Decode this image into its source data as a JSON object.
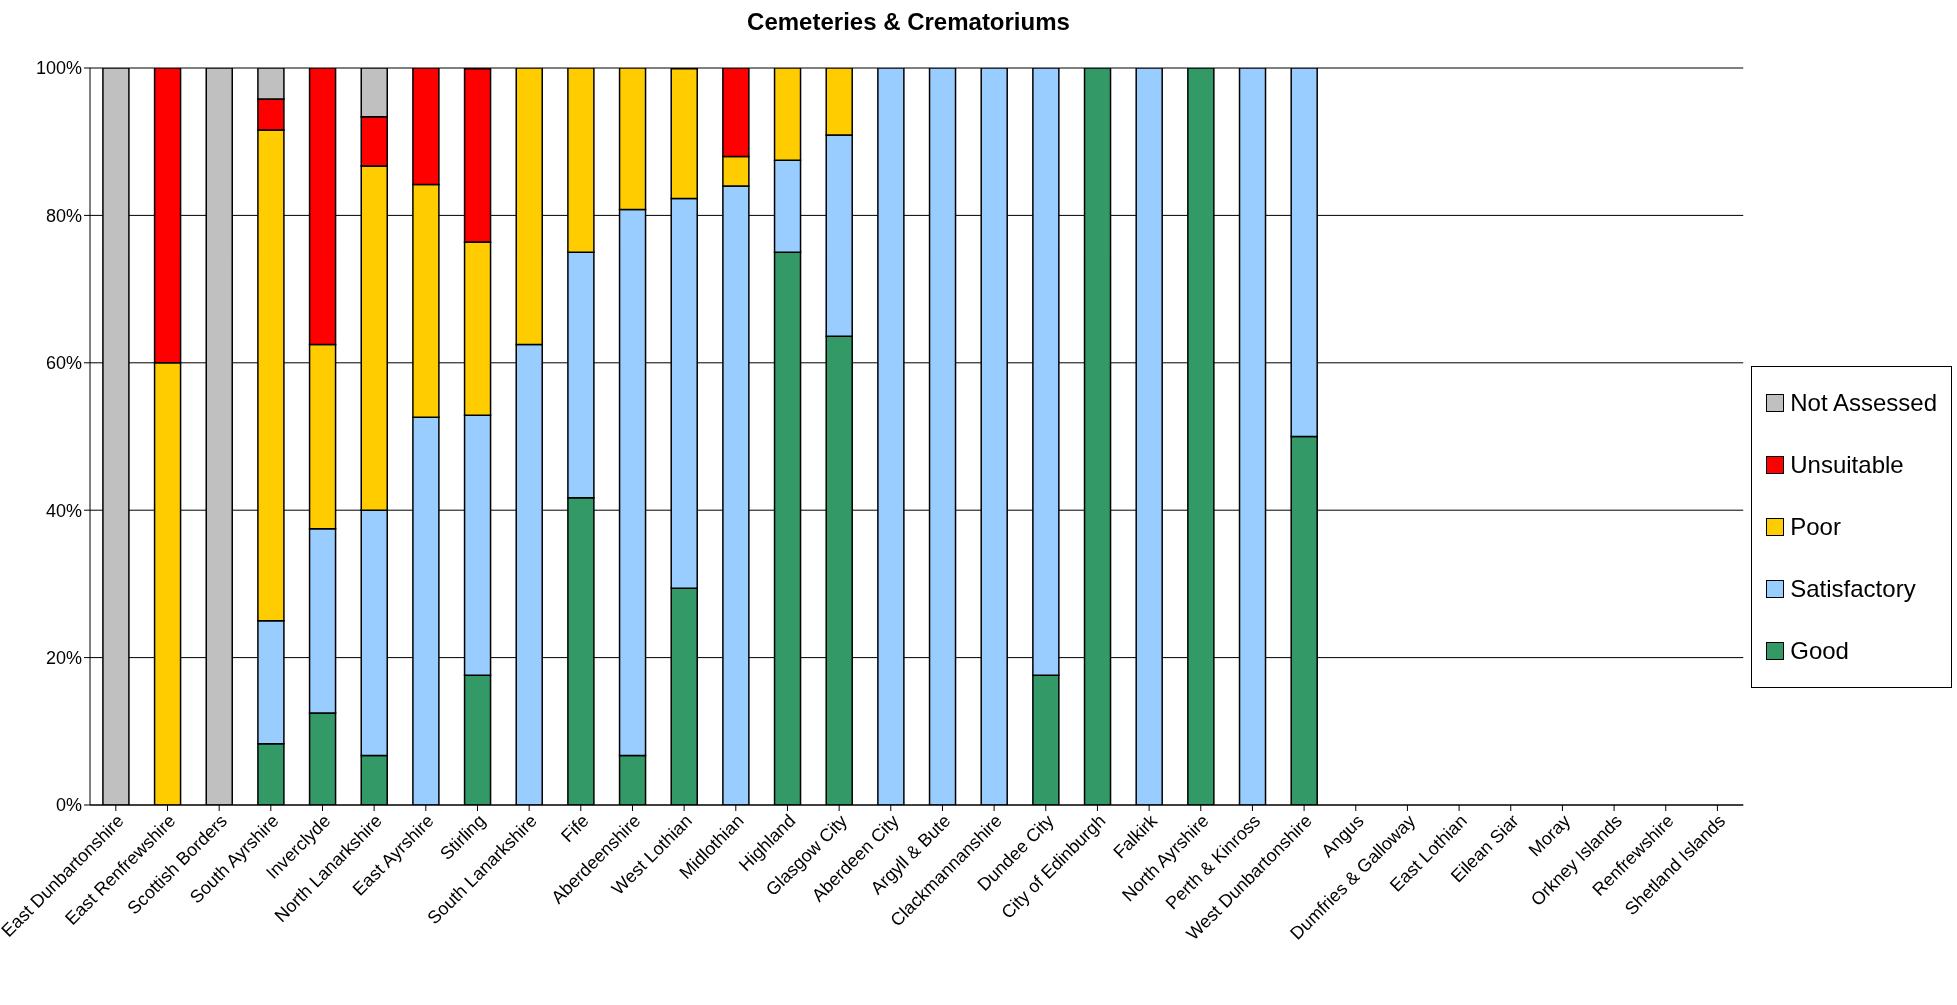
{
  "chart_data": {
    "type": "bar",
    "title": "Cemeteries & Crematoriums",
    "stacked": true,
    "categories": [
      "East Dunbartonshire",
      "East Renfrewshire",
      "Scottish Borders",
      "South Ayrshire",
      "Inverclyde",
      "North Lanarkshire",
      "East Ayrshire",
      "Stirling",
      "South Lanarkshire",
      "Fife",
      "Aberdeenshire",
      "West Lothian",
      "Midlothian",
      "Highland",
      "Glasgow City",
      "Aberdeen City",
      "Argyll & Bute",
      "Clackmannanshire",
      "Dundee City",
      "City of Edinburgh",
      "Falkirk",
      "North Ayrshire",
      "Perth & Kinross",
      "West Dunbartonshire",
      "Angus",
      "Dumfries & Galloway",
      "East Lothian",
      "Eilean Siar",
      "Moray",
      "Orkney Islands",
      "Renfrewshire",
      "Shetland Islands"
    ],
    "series": [
      {
        "name": "Good",
        "color": "#339966",
        "values": [
          0,
          0,
          0,
          8.3,
          12.5,
          6.7,
          0,
          17.6,
          0,
          41.7,
          6.7,
          29.4,
          0,
          75,
          63.6,
          0,
          0,
          0,
          17.6,
          100,
          0,
          100,
          0,
          50,
          null,
          null,
          null,
          null,
          null,
          null,
          null,
          null
        ]
      },
      {
        "name": "Satisfactory",
        "color": "#99ccff",
        "values": [
          0,
          0,
          0,
          16.7,
          25,
          33.3,
          52.6,
          35.3,
          62.5,
          33.3,
          74.1,
          52.9,
          84,
          12.5,
          27.3,
          100,
          100,
          100,
          82.4,
          0,
          100,
          0,
          100,
          50,
          null,
          null,
          null,
          null,
          null,
          null,
          null,
          null
        ]
      },
      {
        "name": "Poor",
        "color": "#ffcc00",
        "values": [
          0,
          60,
          0,
          66.6,
          25,
          46.7,
          31.6,
          23.5,
          37.5,
          25,
          19.2,
          17.6,
          4,
          12.5,
          9.1,
          0,
          0,
          0,
          0,
          0,
          0,
          0,
          0,
          0,
          null,
          null,
          null,
          null,
          null,
          null,
          null,
          null
        ]
      },
      {
        "name": "Unsuitable",
        "color": "#ff0000",
        "values": [
          0,
          40,
          0,
          4.2,
          37.5,
          6.7,
          15.8,
          23.5,
          0,
          0,
          0,
          0,
          12,
          0,
          0,
          0,
          0,
          0,
          0,
          0,
          0,
          0,
          0,
          0,
          null,
          null,
          null,
          null,
          null,
          null,
          null,
          null
        ]
      },
      {
        "name": "Not Assessed",
        "color": "#c0c0c0",
        "values": [
          100,
          0,
          100,
          4.2,
          0,
          6.6,
          0,
          0,
          0,
          0,
          0,
          0,
          0,
          0,
          0,
          0,
          0,
          0,
          0,
          0,
          0,
          0,
          0,
          0,
          null,
          null,
          null,
          null,
          null,
          null,
          null,
          null
        ]
      }
    ],
    "ylim": [
      0,
      100
    ],
    "yticks": [
      {
        "value": 0,
        "label": "0%"
      },
      {
        "value": 20,
        "label": "20%"
      },
      {
        "value": 40,
        "label": "40%"
      },
      {
        "value": 60,
        "label": "60%"
      },
      {
        "value": 80,
        "label": "80%"
      },
      {
        "value": 100,
        "label": "100%"
      }
    ],
    "grid": "y",
    "legend": "right"
  }
}
